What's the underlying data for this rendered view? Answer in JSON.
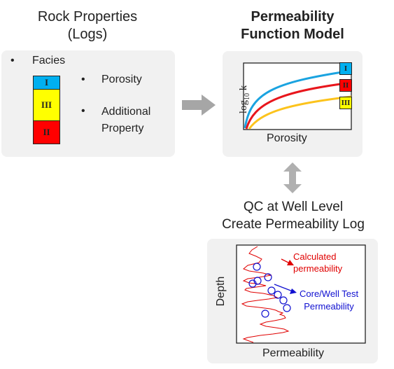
{
  "rock_properties": {
    "title_line1": "Rock Properties",
    "title_line2": "(Logs)",
    "facies_label": "Facies",
    "bullet": "•",
    "porosity_label": "Porosity",
    "additional_line1": "Additional",
    "additional_line2": "Property",
    "facies_stack": [
      {
        "label": "I",
        "color": "#00b0f0"
      },
      {
        "label": "III",
        "color": "#ffff00"
      },
      {
        "label": "II",
        "color": "#ff0000"
      }
    ]
  },
  "model": {
    "title_line1": "Permeability",
    "title_line2": "Function Model",
    "ylabel_base": "log",
    "ylabel_sub": "10",
    "ylabel_var": " k",
    "xlabel": "Porosity",
    "curve_labels": [
      {
        "label": "I",
        "color": "#00b0f0"
      },
      {
        "label": "II",
        "color": "#ff0000"
      },
      {
        "label": "III",
        "color": "#ffff00"
      }
    ],
    "curve_colors": {
      "I": "#1aa3e0",
      "II": "#e8161c",
      "III": "#fcc31c"
    }
  },
  "qc": {
    "title_line1": "QC at Well Level",
    "title_line2": "Create Permeability Log",
    "ylabel": "Depth",
    "xlabel": "Permeability",
    "calc_line1": "Calculated",
    "calc_line2": "permeability",
    "core_line1": "Core/Well Test",
    "core_line2": "Permeability",
    "calc_color": "#e00000",
    "core_color": "#1010d0"
  }
}
